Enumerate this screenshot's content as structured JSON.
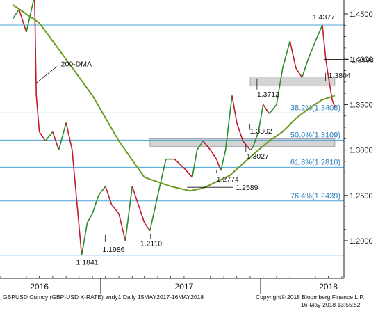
{
  "chart_data": {
    "type": "line",
    "instrument": "GBPUSD Curncy (GBP-USD X-RATE) andy1 Daily 15MAY2017-16MAY2018",
    "copyright": "Copyright® 2018 Bloomberg Finance L.P.",
    "timestamp": "16-May-2018 13:55:52",
    "ylim": [
      1.17,
      1.45
    ],
    "yticks": [
      "1.4500",
      "1.4000",
      "1.3500",
      "1.3000",
      "1.2500",
      "1.2000"
    ],
    "xlabels": [
      "2016",
      "2017",
      "2018"
    ],
    "grid": false,
    "colors": {
      "price_up": "#2a8a2a",
      "price_down": "#c0192b",
      "ma": "#6a9a1e",
      "hline": "#4aa6d6",
      "zone": "#d4d4d4"
    },
    "series": [
      {
        "name": "GBPUSD",
        "x": [
          "2016-05-01",
          "2016-05-15",
          "2016-06-01",
          "2016-06-20",
          "2016-06-24",
          "2016-07-01",
          "2016-07-15",
          "2016-08-01",
          "2016-08-15",
          "2016-09-01",
          "2016-09-15",
          "2016-10-07",
          "2016-10-20",
          "2016-11-01",
          "2016-11-15",
          "2016-12-01",
          "2016-12-15",
          "2017-01-01",
          "2017-01-16",
          "2017-02-01",
          "2017-02-15",
          "2017-03-01",
          "2017-03-14",
          "2017-04-01",
          "2017-04-20",
          "2017-05-10",
          "2017-06-01",
          "2017-06-20",
          "2017-07-01",
          "2017-07-15",
          "2017-08-01",
          "2017-08-15",
          "2017-08-25",
          "2017-09-05",
          "2017-09-20",
          "2017-10-01",
          "2017-10-15",
          "2017-11-01",
          "2017-11-07",
          "2017-11-20",
          "2017-12-01",
          "2017-12-15",
          "2018-01-01",
          "2018-01-15",
          "2018-02-01",
          "2018-02-15",
          "2018-03-01",
          "2018-03-15",
          "2018-04-01",
          "2018-04-17",
          "2018-04-25",
          "2018-05-01",
          "2018-05-10",
          "2018-05-16"
        ],
        "values": [
          1.445,
          1.455,
          1.43,
          1.47,
          1.36,
          1.32,
          1.31,
          1.32,
          1.3,
          1.33,
          1.3,
          1.1841,
          1.22,
          1.23,
          1.25,
          1.26,
          1.24,
          1.23,
          1.2,
          1.26,
          1.24,
          1.22,
          1.211,
          1.25,
          1.29,
          1.29,
          1.28,
          1.27,
          1.3,
          1.31,
          1.3,
          1.29,
          1.2774,
          1.3,
          1.36,
          1.33,
          1.31,
          1.3,
          1.3027,
          1.32,
          1.35,
          1.34,
          1.35,
          1.39,
          1.42,
          1.39,
          1.38,
          1.4,
          1.42,
          1.4377,
          1.4,
          1.3804,
          1.355,
          1.347
        ]
      },
      {
        "name": "200-DMA",
        "x": [
          "2016-05-01",
          "2016-07-01",
          "2016-09-01",
          "2016-11-01",
          "2017-01-01",
          "2017-03-01",
          "2017-05-01",
          "2017-06-15",
          "2017-07-15",
          "2017-08-15",
          "2017-09-15",
          "2017-10-15",
          "2017-11-15",
          "2017-12-15",
          "2018-01-15",
          "2018-02-15",
          "2018-03-15",
          "2018-04-15",
          "2018-05-16"
        ],
        "values": [
          1.46,
          1.44,
          1.4,
          1.36,
          1.31,
          1.27,
          1.26,
          1.255,
          1.258,
          1.265,
          1.272,
          1.285,
          1.298,
          1.31,
          1.32,
          1.335,
          1.345,
          1.355,
          1.36
        ]
      }
    ],
    "fib_lines": [
      {
        "label": "38.2%",
        "value": "1.3408",
        "y": 1.3408
      },
      {
        "label": "50.0%",
        "value": "1.3109",
        "y": 1.3109
      },
      {
        "label": "61.8%",
        "value": "1.2810",
        "y": 1.281
      },
      {
        "label": "76.4%",
        "value": "1.2439",
        "y": 1.2439
      }
    ],
    "extra_lines": [
      1.4377,
      1.1841
    ],
    "zones": [
      {
        "from": "2017-11-01",
        "to": "2018-05-16",
        "ylow": 1.3705,
        "yhigh": 1.3805
      },
      {
        "from": "2017-03-14",
        "to": "2018-05-16",
        "ylow": 1.304,
        "yhigh": 1.3125
      }
    ],
    "annotations": [
      {
        "text": "1.4377",
        "x": "2018-04-17",
        "y": 1.4377
      },
      {
        "text": "1.3998",
        "x": "2018-04-20",
        "y": 1.3998
      },
      {
        "text": "1.3804",
        "x": "2018-05-01",
        "y": 1.3804
      },
      {
        "text": "1.3712",
        "x": "2017-11-20",
        "y": 1.3712
      },
      {
        "text": "1.3302",
        "x": "2017-11-10",
        "y": 1.3302
      },
      {
        "text": "1.3027",
        "x": "2017-11-07",
        "y": 1.3027
      },
      {
        "text": "1.2774",
        "x": "2017-08-25",
        "y": 1.2774
      },
      {
        "text": "1.2589",
        "x": "2017-07-20",
        "y": 1.2589
      },
      {
        "text": "1.2110",
        "x": "2017-03-14",
        "y": 1.211
      },
      {
        "text": "1.1986",
        "x": "2016-12-10",
        "y": 1.1986
      },
      {
        "text": "1.1841",
        "x": "2016-10-07",
        "y": 1.1841
      },
      {
        "text": "200-DMA",
        "x": "2016-08-20",
        "y": 1.395
      }
    ]
  }
}
